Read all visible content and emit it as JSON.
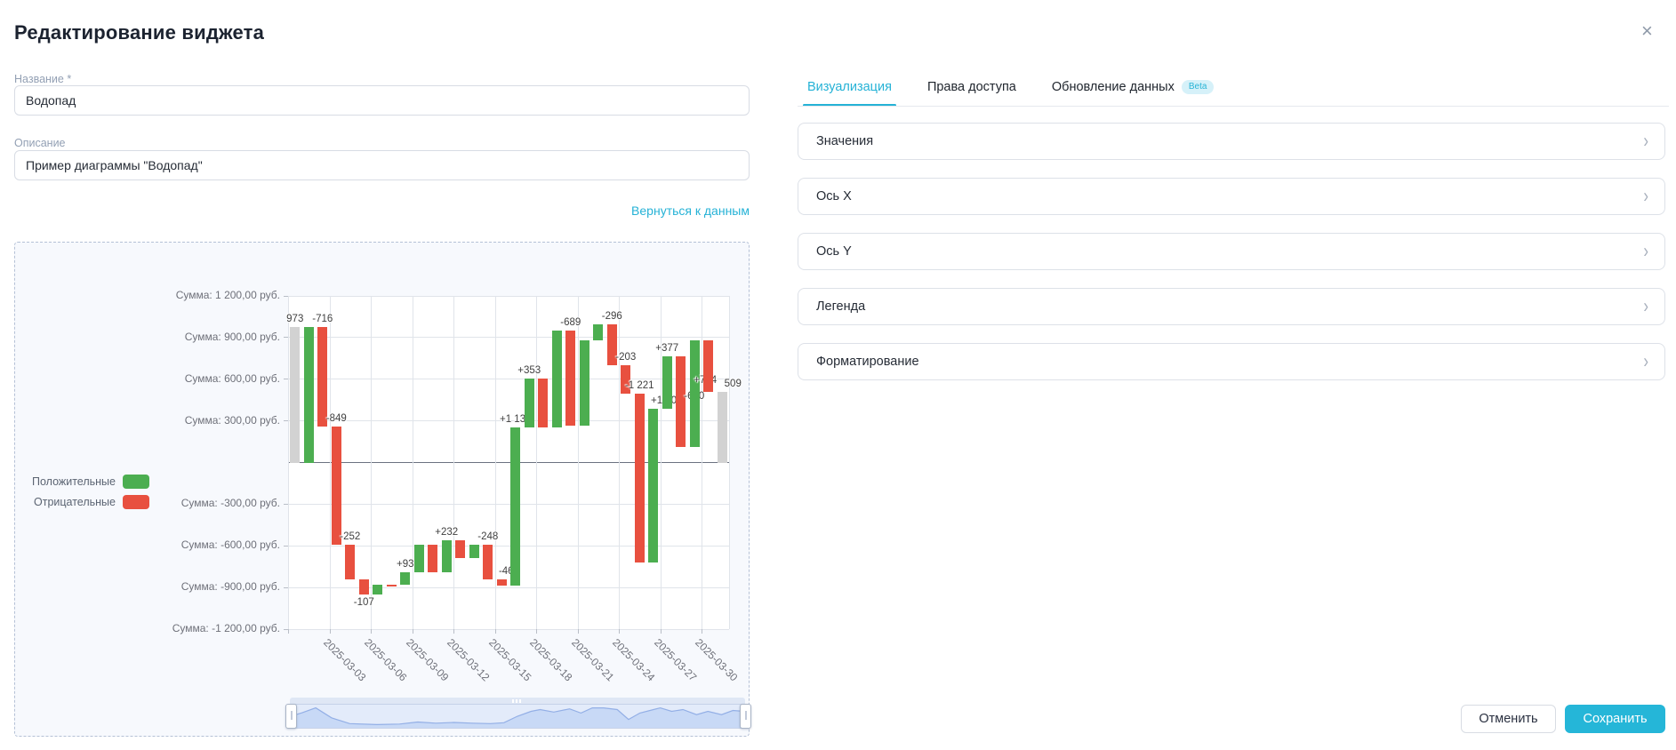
{
  "dialog": {
    "title": "Редактирование виджета",
    "close_icon": "×"
  },
  "form": {
    "name_label": "Название *",
    "name_value": "Водопад",
    "description_label": "Описание",
    "description_value": "Пример диаграммы \"Водопад\"",
    "back_link": "Вернуться к данным"
  },
  "tabs": [
    {
      "label": "Визуализация",
      "active": true
    },
    {
      "label": "Права доступа",
      "active": false
    },
    {
      "label": "Обновление данных",
      "active": false,
      "badge": "Beta"
    }
  ],
  "accordion": [
    {
      "label": "Значения"
    },
    {
      "label": "Ось X"
    },
    {
      "label": "Ось Y"
    },
    {
      "label": "Легенда"
    },
    {
      "label": "Форматирование"
    }
  ],
  "footer": {
    "cancel": "Отменить",
    "save": "Сохранить"
  },
  "ui": {
    "chevron": "›"
  },
  "colors": {
    "accent": "#25b2d6",
    "positive": "#4cae50",
    "negative": "#e8503f",
    "neutral": "#d2d2d2",
    "axis_text": "#6e7079",
    "grid": "#e0e4ea",
    "zero_line": "#6b7280"
  },
  "chart_data": {
    "type": "waterfall",
    "legend": [
      {
        "label": "Положительные",
        "color": "#4cae50"
      },
      {
        "label": "Отрицательные",
        "color": "#e8503f"
      }
    ],
    "y_axis": {
      "min": -1200,
      "max": 1200,
      "interval": 300,
      "labels": [
        {
          "value": 1200,
          "text": "Сумма: 1 200,00 руб."
        },
        {
          "value": 900,
          "text": "Сумма: 900,00 руб."
        },
        {
          "value": 600,
          "text": "Сумма: 600,00 руб."
        },
        {
          "value": 300,
          "text": "Сумма: 300,00 руб."
        },
        {
          "value": -300,
          "text": "Сумма: -300,00 руб."
        },
        {
          "value": -600,
          "text": "Сумма: -600,00 руб."
        },
        {
          "value": -900,
          "text": "Сумма: -900,00 руб."
        },
        {
          "value": -1200,
          "text": "Сумма: -1 200,00 руб."
        }
      ]
    },
    "x_axis": {
      "tick_labels": [
        "2025-03-03",
        "2025-03-06",
        "2025-03-09",
        "2025-03-12",
        "2025-03-15",
        "2025-03-18",
        "2025-03-21",
        "2025-03-24",
        "2025-03-27",
        "2025-03-30"
      ]
    },
    "bars": [
      {
        "kind": "total",
        "from": 0,
        "to": 973,
        "label": "973"
      },
      {
        "kind": "up",
        "from": 0,
        "to": 973,
        "label": null
      },
      {
        "kind": "down",
        "from": 973,
        "to": 257,
        "label": "-716"
      },
      {
        "kind": "down",
        "from": 257,
        "to": -592,
        "label": "-849"
      },
      {
        "kind": "down",
        "from": -592,
        "to": -844,
        "label": "-252"
      },
      {
        "kind": "down",
        "from": -844,
        "to": -951,
        "label": "-107",
        "label_dy": 35
      },
      {
        "kind": "up",
        "from": -951,
        "to": -877,
        "label": null
      },
      {
        "kind": "down",
        "from": -877,
        "to": -882,
        "label": null
      },
      {
        "kind": "up",
        "from": -882,
        "to": -789,
        "label": "+93"
      },
      {
        "kind": "up",
        "from": -789,
        "to": -589,
        "label": null
      },
      {
        "kind": "down",
        "from": -589,
        "to": -793,
        "label": null
      },
      {
        "kind": "up",
        "from": -793,
        "to": -561,
        "label": "+232"
      },
      {
        "kind": "down",
        "from": -561,
        "to": -691,
        "label": null
      },
      {
        "kind": "up",
        "from": -691,
        "to": -591,
        "label": null
      },
      {
        "kind": "down",
        "from": -591,
        "to": -839,
        "label": "-248"
      },
      {
        "kind": "down",
        "from": -839,
        "to": -885,
        "label": "-46",
        "label_dx": 5
      },
      {
        "kind": "up",
        "from": -885,
        "to": 252,
        "label": "+1 137"
      },
      {
        "kind": "up",
        "from": 252,
        "to": 605,
        "label": "+353"
      },
      {
        "kind": "down",
        "from": 605,
        "to": 255,
        "label": null
      },
      {
        "kind": "up",
        "from": 255,
        "to": 953,
        "label": null
      },
      {
        "kind": "down",
        "from": 953,
        "to": 264,
        "label": "-689"
      },
      {
        "kind": "up",
        "from": 264,
        "to": 877,
        "label": null
      },
      {
        "kind": "up",
        "from": 877,
        "to": 998,
        "label": null
      },
      {
        "kind": "down",
        "from": 998,
        "to": 702,
        "label": "-296"
      },
      {
        "kind": "down",
        "from": 702,
        "to": 499,
        "label": "-203"
      },
      {
        "kind": "down",
        "from": 499,
        "to": -722,
        "label": "-1 221"
      },
      {
        "kind": "up",
        "from": -722,
        "to": 387,
        "label": "+1 109",
        "label_dx": 15
      },
      {
        "kind": "up",
        "from": 387,
        "to": 764,
        "label": "+377"
      },
      {
        "kind": "down",
        "from": 764,
        "to": 114,
        "label": "-650",
        "label_dx": 15,
        "label_dy": 54
      },
      {
        "kind": "up",
        "from": 114,
        "to": 878,
        "label": "+764",
        "label_dx": 12,
        "label_dy": 54
      },
      {
        "kind": "down",
        "from": 878,
        "to": 509,
        "label": null
      },
      {
        "kind": "total",
        "from": 0,
        "to": 509,
        "label": "509",
        "label_dx": 12
      }
    ],
    "minimap_points": [
      [
        0,
        0.5
      ],
      [
        0.025,
        0.35
      ],
      [
        0.055,
        0.14
      ],
      [
        0.09,
        0.57
      ],
      [
        0.13,
        0.82
      ],
      [
        0.19,
        0.86
      ],
      [
        0.24,
        0.84
      ],
      [
        0.28,
        0.75
      ],
      [
        0.32,
        0.8
      ],
      [
        0.36,
        0.77
      ],
      [
        0.4,
        0.8
      ],
      [
        0.44,
        0.82
      ],
      [
        0.47,
        0.78
      ],
      [
        0.5,
        0.5
      ],
      [
        0.53,
        0.29
      ],
      [
        0.55,
        0.21
      ],
      [
        0.58,
        0.32
      ],
      [
        0.615,
        0.18
      ],
      [
        0.64,
        0.36
      ],
      [
        0.665,
        0.14
      ],
      [
        0.69,
        0.14
      ],
      [
        0.72,
        0.21
      ],
      [
        0.745,
        0.64
      ],
      [
        0.77,
        0.36
      ],
      [
        0.8,
        0.21
      ],
      [
        0.815,
        0.14
      ],
      [
        0.84,
        0.29
      ],
      [
        0.865,
        0.21
      ],
      [
        0.895,
        0.43
      ],
      [
        0.92,
        0.29
      ],
      [
        0.95,
        0.43
      ],
      [
        0.975,
        0.25
      ],
      [
        1,
        0.29
      ]
    ]
  }
}
